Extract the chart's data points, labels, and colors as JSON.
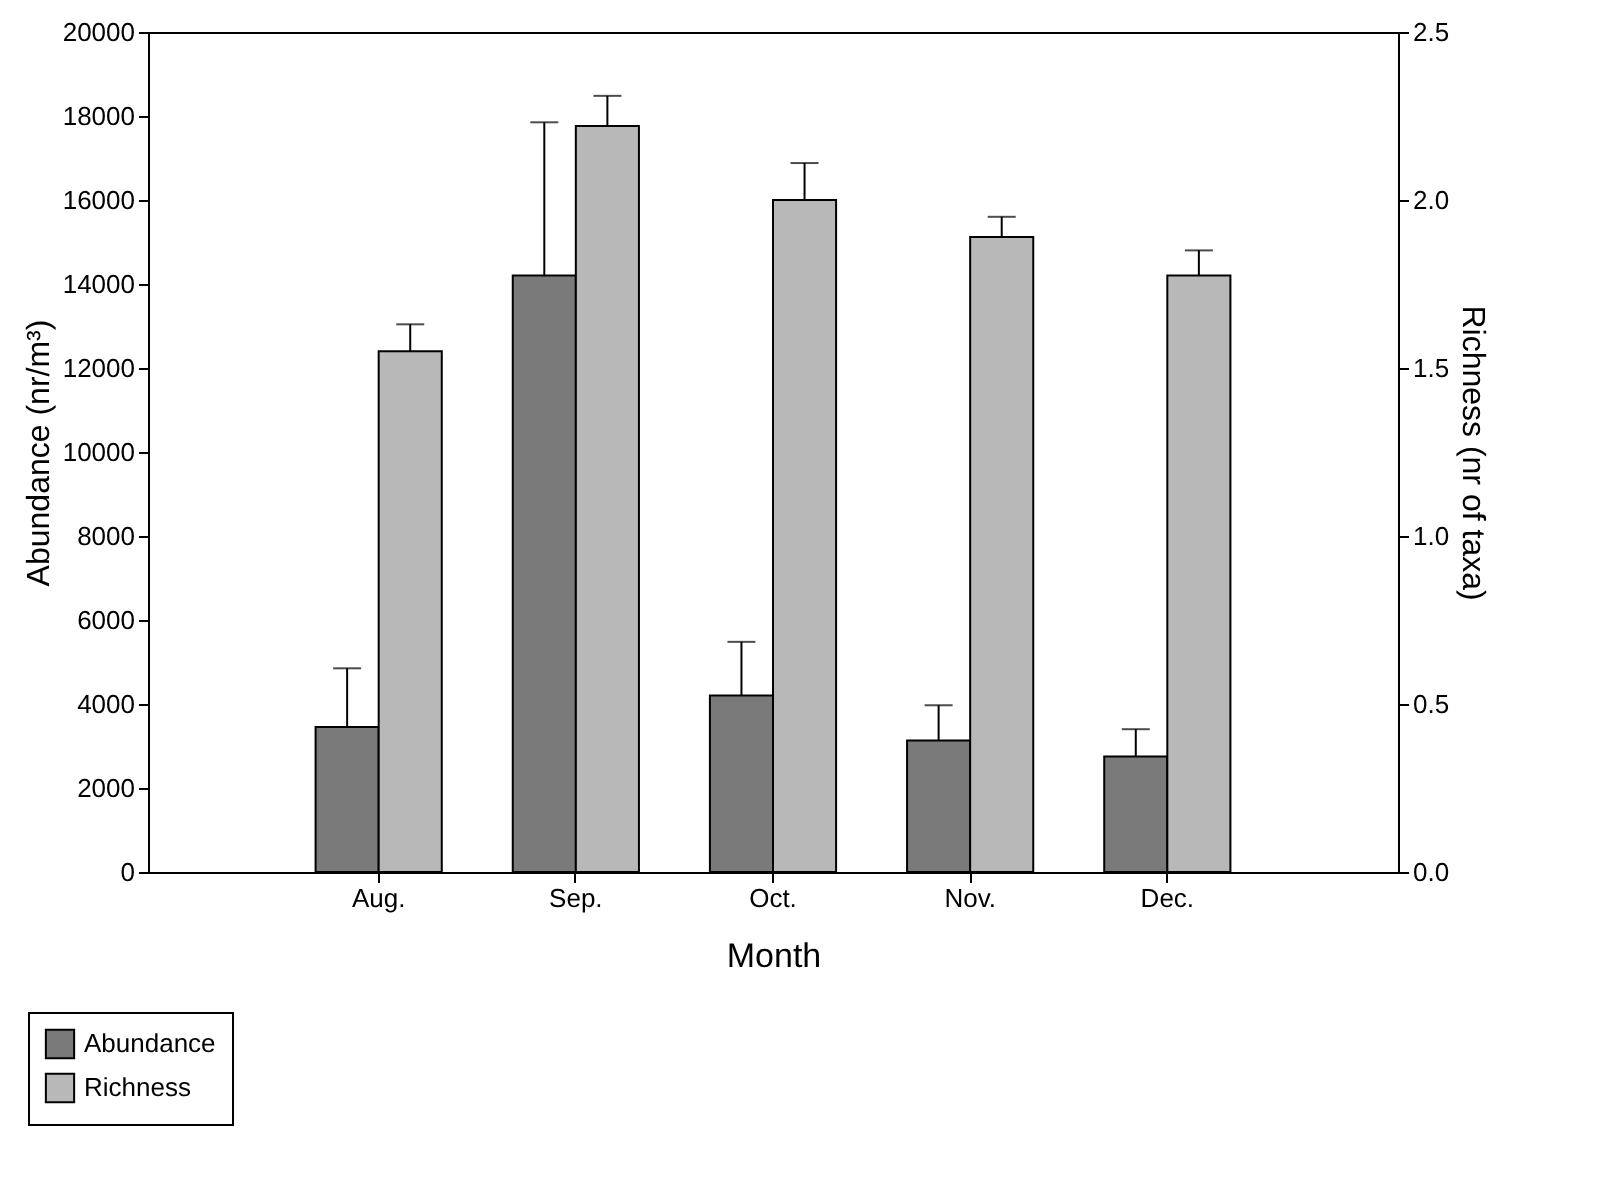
{
  "chart_data": {
    "type": "bar",
    "xlabel": "Month",
    "ylabel": "Abundance (nr/m³)",
    "y2label": "Richness (nr of taxa)",
    "categories": [
      "Aug.",
      "Sep.",
      "Oct.",
      "Nov.",
      "Dec."
    ],
    "series": [
      {
        "name": "Abundance",
        "color": "#7a7a7a",
        "values": [
          3450,
          14200,
          4200,
          3130,
          2750
        ],
        "errors": [
          [
            3450,
            4850
          ],
          [
            14200,
            17850
          ],
          [
            4200,
            5480
          ],
          [
            3130,
            3970
          ],
          [
            2750,
            3400
          ]
        ]
      },
      {
        "name": "Richness",
        "color": "#b8b8b8",
        "axis": "y2",
        "values": [
          1.55,
          2.22,
          2.0,
          1.89,
          1.775
        ],
        "errors": [
          [
            1.55,
            1.63
          ],
          [
            2.22,
            2.31
          ],
          [
            2.0,
            2.11
          ],
          [
            1.89,
            1.95
          ],
          [
            1.775,
            1.85
          ]
        ]
      }
    ],
    "ylim": [
      0,
      20000
    ],
    "yticks": [
      0,
      2000,
      4000,
      6000,
      8000,
      10000,
      12000,
      14000,
      16000,
      18000,
      20000
    ],
    "y2lim": [
      0,
      2.5
    ],
    "y2ticks": [
      {
        "value": 0,
        "label": "0.0"
      },
      {
        "value": 0.5,
        "label": "0.5"
      },
      {
        "value": 1,
        "label": "1.0"
      },
      {
        "value": 1.5,
        "label": "1.5"
      },
      {
        "value": 2,
        "label": "2.0"
      },
      {
        "value": 2.5,
        "label": "2.5"
      }
    ],
    "grid": false,
    "legend": "bottom left"
  }
}
